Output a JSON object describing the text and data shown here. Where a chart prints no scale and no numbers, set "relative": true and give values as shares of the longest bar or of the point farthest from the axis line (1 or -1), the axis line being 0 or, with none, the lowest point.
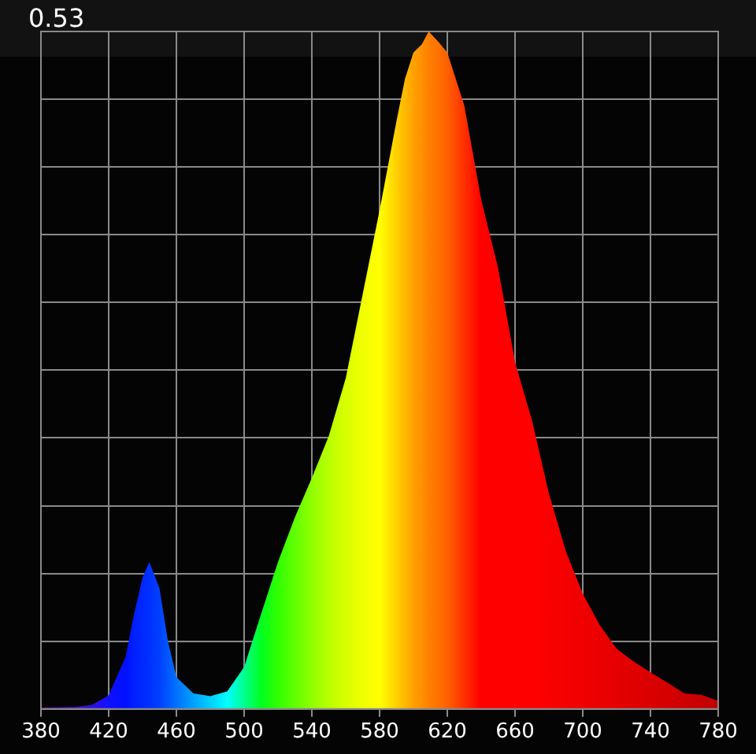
{
  "chart_data": {
    "type": "area",
    "relative": true,
    "annotations": [
      "0.53"
    ],
    "xlim": [
      380,
      780
    ],
    "xticks": [
      380,
      420,
      460,
      500,
      540,
      580,
      620,
      660,
      700,
      740,
      780
    ],
    "grid": true,
    "x": [
      380,
      400,
      410,
      420,
      430,
      435,
      440,
      444,
      450,
      455,
      460,
      470,
      480,
      490,
      500,
      510,
      520,
      530,
      540,
      550,
      560,
      570,
      580,
      590,
      595,
      600,
      605,
      609,
      615,
      620,
      625,
      630,
      640,
      650,
      660,
      670,
      680,
      690,
      700,
      710,
      720,
      730,
      740,
      750,
      760,
      770,
      780
    ],
    "series": [
      {
        "values": [
          0.002,
          0.003,
          0.006,
          0.02,
          0.077,
          0.14,
          0.194,
          0.217,
          0.178,
          0.1,
          0.047,
          0.023,
          0.019,
          0.026,
          0.062,
          0.14,
          0.217,
          0.283,
          0.341,
          0.403,
          0.488,
          0.612,
          0.736,
          0.868,
          0.93,
          0.969,
          0.981,
          1,
          0.984,
          0.969,
          0.93,
          0.891,
          0.752,
          0.651,
          0.512,
          0.426,
          0.318,
          0.233,
          0.17,
          0.124,
          0.089,
          0.07,
          0.054,
          0.039,
          0.023,
          0.021,
          0.012
        ],
        "colors": [
          "#5a00a0",
          "#4a10c8",
          "#3010e0",
          "#1010ff",
          "#0010ff",
          "#0020ff",
          "#0028ff",
          "#0030ff",
          "#0040ff",
          "#0058ff",
          "#0070ff",
          "#00a0ff",
          "#00d0ff",
          "#00ffff",
          "#00ff90",
          "#00ff20",
          "#30ff00",
          "#60ff00",
          "#90ff00",
          "#b8ff00",
          "#d8ff00",
          "#f0ff00",
          "#ffff00",
          "#ffd000",
          "#ffb800",
          "#ffa000",
          "#ff9000",
          "#ff8000",
          "#ff7000",
          "#ff6000",
          "#ff4800",
          "#ff3000",
          "#ff0000",
          "#ff0000",
          "#ff0000",
          "#ff0000",
          "#fa0000",
          "#f50000",
          "#f00000",
          "#eb0000",
          "#e60000",
          "#e00000",
          "#da0000",
          "#d40000",
          "#ce0000",
          "#c80000",
          "#c00000"
        ]
      }
    ]
  }
}
